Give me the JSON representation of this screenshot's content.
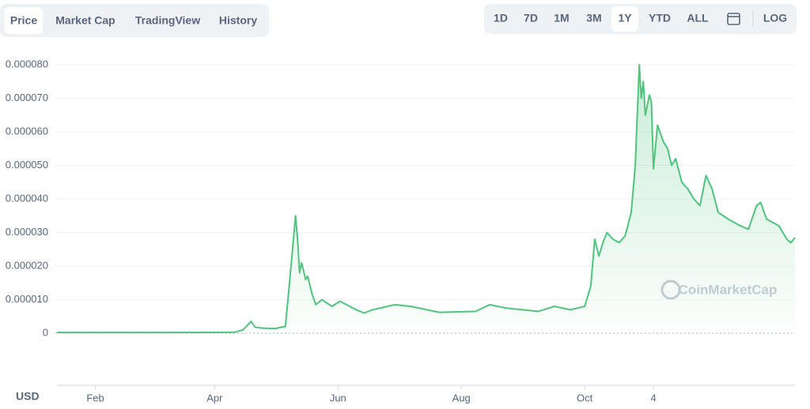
{
  "ui": {
    "tabs": [
      "Price",
      "Market Cap",
      "TradingView",
      "History"
    ],
    "active_tab": 0,
    "ranges": [
      "1D",
      "7D",
      "1M",
      "3M",
      "1Y",
      "YTD",
      "ALL"
    ],
    "active_range": 4,
    "log": "LOG",
    "currency": "USD",
    "watermark": "CoinMarketCap"
  },
  "chart_data": {
    "type": "line",
    "color": "#4fc47d",
    "grid": true,
    "x": [
      0,
      20,
      40,
      60,
      80,
      88,
      92,
      96,
      98,
      102,
      108,
      111,
      113,
      115,
      118,
      119,
      120,
      121,
      123,
      124,
      126,
      128,
      131,
      136,
      140,
      148,
      152,
      156,
      160,
      167,
      175,
      183,
      189,
      207,
      214,
      222,
      238,
      246,
      254,
      261,
      264,
      266,
      268,
      270,
      272,
      275,
      278,
      281,
      284,
      286,
      288,
      289,
      290,
      291,
      293,
      294,
      295,
      297,
      300,
      302,
      304,
      306,
      309,
      312,
      315,
      318,
      321,
      324,
      327,
      332,
      338,
      342,
      346,
      348,
      351,
      357,
      361,
      363,
      365
    ],
    "series": [
      {
        "name": "Price",
        "color": "#4fc47d",
        "values": [
          2e-07,
          2e-07,
          2e-07,
          2e-07,
          2.5e-07,
          3e-07,
          1e-06,
          3.5e-06,
          1.8e-06,
          1.5e-06,
          1.4e-06,
          1.8e-06,
          2e-06,
          1.5e-05,
          3.5e-05,
          2.8e-05,
          1.8e-05,
          2.1e-05,
          1.6e-05,
          1.7e-05,
          1.2e-05,
          8.5e-06,
          1e-05,
          8e-06,
          9.5e-06,
          7e-06,
          6e-06,
          7e-06,
          7.5e-06,
          8.5e-06,
          8e-06,
          7e-06,
          6.2e-06,
          6.5e-06,
          8.5e-06,
          7.5e-06,
          6.5e-06,
          8e-06,
          7e-06,
          8e-06,
          1.4e-05,
          2.8e-05,
          2.3e-05,
          2.7e-05,
          3e-05,
          2.8e-05,
          2.7e-05,
          2.9e-05,
          3.6e-05,
          5e-05,
          8e-05,
          7e-05,
          7.5e-05,
          6.5e-05,
          7.1e-05,
          6.9e-05,
          4.9e-05,
          6.2e-05,
          5.7e-05,
          5.5e-05,
          5e-05,
          5.2e-05,
          4.5e-05,
          4.3e-05,
          4e-05,
          3.8e-05,
          4.7e-05,
          4.3e-05,
          3.6e-05,
          3.4e-05,
          3.2e-05,
          3.1e-05,
          3.8e-05,
          3.9e-05,
          3.4e-05,
          3.2e-05,
          2.8e-05,
          2.7e-05,
          2.85e-05
        ]
      }
    ],
    "xlim": [
      0,
      365
    ],
    "xticks": [
      {
        "value": 19,
        "label": "Feb"
      },
      {
        "value": 78,
        "label": "Apr"
      },
      {
        "value": 139,
        "label": "Jun"
      },
      {
        "value": 200,
        "label": "Aug"
      },
      {
        "value": 261,
        "label": "Oct"
      },
      {
        "value": 295,
        "label": "4"
      }
    ],
    "ylim": [
      0,
      8e-05
    ],
    "yticks": [
      0,
      {
        "value": 1e-05,
        "label": "0.000010"
      },
      {
        "value": 2e-05,
        "label": "0.000020"
      },
      {
        "value": 3e-05,
        "label": "0.000030"
      },
      {
        "value": 4e-05,
        "label": "0.000040"
      },
      {
        "value": 5e-05,
        "label": "0.000050"
      },
      {
        "value": 6e-05,
        "label": "0.000060"
      },
      {
        "value": 7e-05,
        "label": "0.000070"
      },
      {
        "value": 8e-05,
        "label": "0.000080"
      }
    ]
  }
}
